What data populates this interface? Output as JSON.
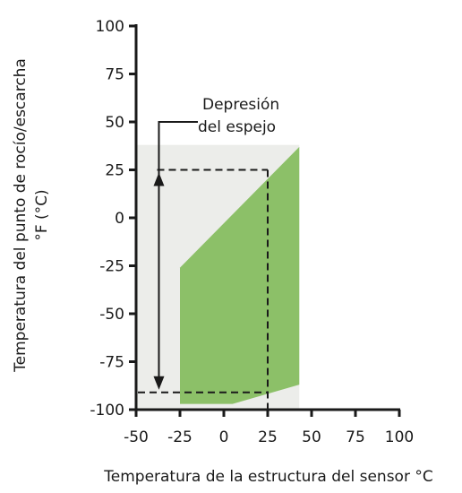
{
  "chart_data": {
    "type": "area",
    "xlabel": "Temperatura de la estructura del sensor °C",
    "ylabel_line1": "Temperatura del punto de rocío/escarcha",
    "ylabel_line2": "°F (°C)",
    "xlim": [
      -50,
      100
    ],
    "ylim": [
      -100,
      100
    ],
    "xticks": [
      -50,
      -25,
      0,
      25,
      50,
      75,
      100
    ],
    "yticks": [
      -100,
      -75,
      -50,
      -25,
      0,
      25,
      50,
      75,
      100
    ],
    "annotation_line1": "Depresión",
    "annotation_line2": "del espejo",
    "background_region": {
      "x": [
        -50,
        43
      ],
      "y": [
        -100,
        38
      ],
      "color": "#ecedea"
    },
    "operating_region": {
      "color": "#8cc068",
      "polygon": [
        [
          -25,
          -26
        ],
        [
          43,
          37
        ],
        [
          43,
          -87
        ],
        [
          5,
          -97
        ],
        [
          -25,
          -97
        ]
      ]
    },
    "dashed_guides": {
      "upper_y": 25,
      "lower_y": -91,
      "right_x": 25,
      "left_x": -37
    },
    "depression_arrow": {
      "x": -37,
      "from_y": 25,
      "to_y": -91
    }
  }
}
